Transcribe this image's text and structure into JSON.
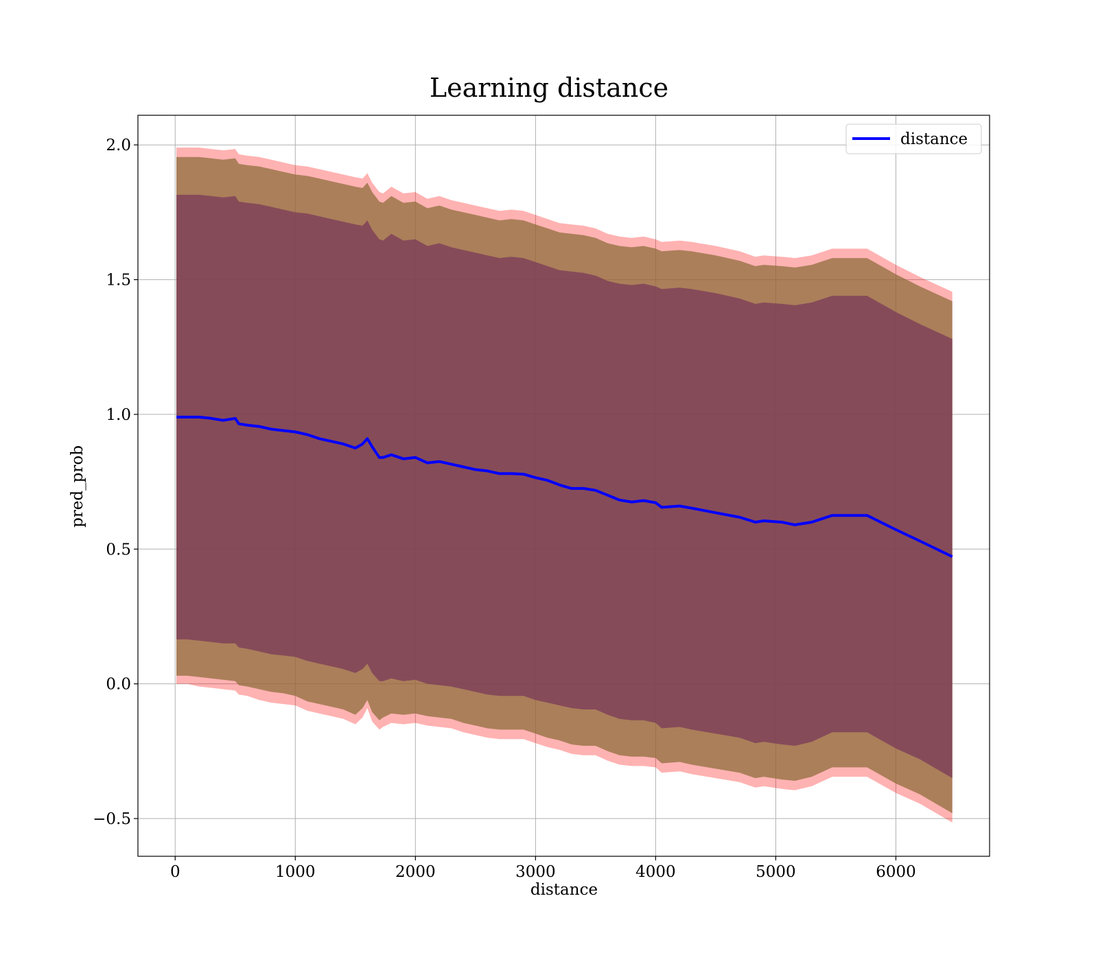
{
  "chart_data": {
    "type": "line",
    "title": "Learning distance",
    "xlabel": "distance",
    "ylabel": "pred_prob",
    "xlim": [
      -310,
      6780
    ],
    "ylim": [
      -0.64,
      2.11
    ],
    "xticks": [
      0,
      1000,
      2000,
      3000,
      4000,
      5000,
      6000
    ],
    "yticks": [
      -0.5,
      0.0,
      0.5,
      1.0,
      1.5,
      2.0
    ],
    "xtick_labels": [
      "0",
      "1000",
      "2000",
      "3000",
      "4000",
      "5000",
      "6000"
    ],
    "ytick_labels": [
      "−0.5",
      "0.0",
      "0.5",
      "1.0",
      "1.5",
      "2.0"
    ],
    "grid": true,
    "legend_position": "top-right",
    "legend": [
      "distance"
    ],
    "colors": {
      "line": "#0000ff",
      "band_outer": "#ff0000",
      "band_middle": "#8f6e3c",
      "band_inner": "#7a3a5a",
      "grid": "#b0b0b0"
    },
    "series": [
      {
        "name": "distance",
        "x": [
          10,
          100,
          200,
          300,
          400,
          500,
          530,
          600,
          700,
          800,
          900,
          1000,
          1100,
          1200,
          1300,
          1400,
          1500,
          1560,
          1600,
          1640,
          1700,
          1730,
          1800,
          1900,
          2000,
          2100,
          2200,
          2300,
          2400,
          2500,
          2600,
          2700,
          2800,
          2900,
          3000,
          3100,
          3200,
          3300,
          3400,
          3500,
          3600,
          3700,
          3800,
          3900,
          4000,
          4050,
          4200,
          4300,
          4500,
          4700,
          4830,
          4900,
          5050,
          5160,
          5300,
          5470,
          5600,
          5760,
          6000,
          6200,
          6470
        ],
        "values": [
          0.99,
          0.99,
          0.99,
          0.985,
          0.978,
          0.985,
          0.965,
          0.96,
          0.955,
          0.945,
          0.94,
          0.935,
          0.925,
          0.91,
          0.9,
          0.89,
          0.875,
          0.89,
          0.91,
          0.88,
          0.84,
          0.84,
          0.85,
          0.835,
          0.84,
          0.82,
          0.825,
          0.815,
          0.805,
          0.795,
          0.79,
          0.78,
          0.78,
          0.778,
          0.765,
          0.755,
          0.738,
          0.725,
          0.725,
          0.718,
          0.7,
          0.682,
          0.675,
          0.68,
          0.672,
          0.655,
          0.66,
          0.652,
          0.635,
          0.618,
          0.6,
          0.605,
          0.6,
          0.59,
          0.6,
          0.625,
          0.625,
          0.625,
          0.572,
          0.53,
          0.472
        ],
        "bands": [
          {
            "name": "outer",
            "lower": [
              0.0,
              0.0,
              -0.01,
              -0.015,
              -0.02,
              -0.025,
              -0.04,
              -0.045,
              -0.06,
              -0.07,
              -0.075,
              -0.08,
              -0.1,
              -0.11,
              -0.12,
              -0.13,
              -0.15,
              -0.125,
              -0.09,
              -0.14,
              -0.17,
              -0.16,
              -0.145,
              -0.15,
              -0.145,
              -0.155,
              -0.16,
              -0.165,
              -0.18,
              -0.19,
              -0.2,
              -0.205,
              -0.205,
              -0.205,
              -0.22,
              -0.235,
              -0.245,
              -0.26,
              -0.265,
              -0.265,
              -0.285,
              -0.3,
              -0.305,
              -0.305,
              -0.31,
              -0.33,
              -0.325,
              -0.335,
              -0.35,
              -0.365,
              -0.385,
              -0.38,
              -0.39,
              -0.395,
              -0.38,
              -0.345,
              -0.345,
              -0.345,
              -0.405,
              -0.445,
              -0.515
            ],
            "upper": [
              1.99,
              1.99,
              1.99,
              1.985,
              1.98,
              1.985,
              1.965,
              1.96,
              1.955,
              1.945,
              1.935,
              1.925,
              1.92,
              1.91,
              1.9,
              1.89,
              1.88,
              1.875,
              1.895,
              1.86,
              1.825,
              1.82,
              1.845,
              1.82,
              1.825,
              1.8,
              1.81,
              1.795,
              1.785,
              1.775,
              1.765,
              1.755,
              1.76,
              1.755,
              1.74,
              1.725,
              1.71,
              1.705,
              1.7,
              1.69,
              1.67,
              1.66,
              1.655,
              1.66,
              1.65,
              1.64,
              1.645,
              1.64,
              1.625,
              1.605,
              1.585,
              1.59,
              1.585,
              1.58,
              1.59,
              1.615,
              1.615,
              1.615,
              1.555,
              1.51,
              1.455
            ]
          },
          {
            "name": "middle",
            "lower": [
              0.03,
              0.03,
              0.025,
              0.02,
              0.015,
              0.01,
              -0.005,
              -0.01,
              -0.02,
              -0.03,
              -0.035,
              -0.045,
              -0.065,
              -0.075,
              -0.085,
              -0.095,
              -0.115,
              -0.09,
              -0.06,
              -0.105,
              -0.135,
              -0.125,
              -0.11,
              -0.115,
              -0.11,
              -0.12,
              -0.125,
              -0.13,
              -0.145,
              -0.155,
              -0.165,
              -0.17,
              -0.17,
              -0.17,
              -0.185,
              -0.2,
              -0.21,
              -0.225,
              -0.23,
              -0.23,
              -0.25,
              -0.265,
              -0.27,
              -0.27,
              -0.275,
              -0.295,
              -0.29,
              -0.3,
              -0.315,
              -0.33,
              -0.35,
              -0.345,
              -0.355,
              -0.36,
              -0.345,
              -0.31,
              -0.31,
              -0.31,
              -0.37,
              -0.41,
              -0.48
            ],
            "upper": [
              1.955,
              1.955,
              1.955,
              1.95,
              1.945,
              1.95,
              1.93,
              1.925,
              1.92,
              1.91,
              1.9,
              1.89,
              1.885,
              1.875,
              1.865,
              1.855,
              1.845,
              1.84,
              1.86,
              1.825,
              1.79,
              1.785,
              1.81,
              1.785,
              1.79,
              1.765,
              1.775,
              1.76,
              1.75,
              1.74,
              1.73,
              1.72,
              1.725,
              1.72,
              1.705,
              1.69,
              1.675,
              1.67,
              1.665,
              1.655,
              1.635,
              1.625,
              1.62,
              1.625,
              1.615,
              1.605,
              1.61,
              1.605,
              1.59,
              1.57,
              1.55,
              1.555,
              1.55,
              1.545,
              1.555,
              1.58,
              1.58,
              1.58,
              1.52,
              1.475,
              1.42
            ]
          },
          {
            "name": "inner",
            "lower": [
              0.165,
              0.165,
              0.16,
              0.155,
              0.15,
              0.15,
              0.135,
              0.13,
              0.12,
              0.11,
              0.105,
              0.1,
              0.085,
              0.075,
              0.065,
              0.055,
              0.04,
              0.055,
              0.075,
              0.04,
              0.01,
              0.01,
              0.02,
              0.01,
              0.015,
              0.0,
              -0.005,
              -0.01,
              -0.02,
              -0.03,
              -0.04,
              -0.045,
              -0.045,
              -0.045,
              -0.06,
              -0.07,
              -0.08,
              -0.09,
              -0.095,
              -0.095,
              -0.115,
              -0.13,
              -0.135,
              -0.135,
              -0.145,
              -0.165,
              -0.16,
              -0.17,
              -0.185,
              -0.2,
              -0.22,
              -0.215,
              -0.225,
              -0.23,
              -0.215,
              -0.18,
              -0.18,
              -0.18,
              -0.24,
              -0.28,
              -0.35
            ],
            "upper": [
              1.815,
              1.815,
              1.815,
              1.81,
              1.805,
              1.81,
              1.79,
              1.785,
              1.78,
              1.77,
              1.76,
              1.75,
              1.745,
              1.735,
              1.725,
              1.715,
              1.705,
              1.7,
              1.72,
              1.685,
              1.65,
              1.645,
              1.67,
              1.645,
              1.65,
              1.625,
              1.635,
              1.62,
              1.61,
              1.6,
              1.59,
              1.58,
              1.585,
              1.58,
              1.565,
              1.55,
              1.535,
              1.53,
              1.525,
              1.515,
              1.495,
              1.485,
              1.48,
              1.485,
              1.475,
              1.465,
              1.47,
              1.465,
              1.45,
              1.43,
              1.41,
              1.415,
              1.41,
              1.405,
              1.415,
              1.44,
              1.44,
              1.44,
              1.38,
              1.335,
              1.28
            ]
          }
        ]
      }
    ]
  }
}
